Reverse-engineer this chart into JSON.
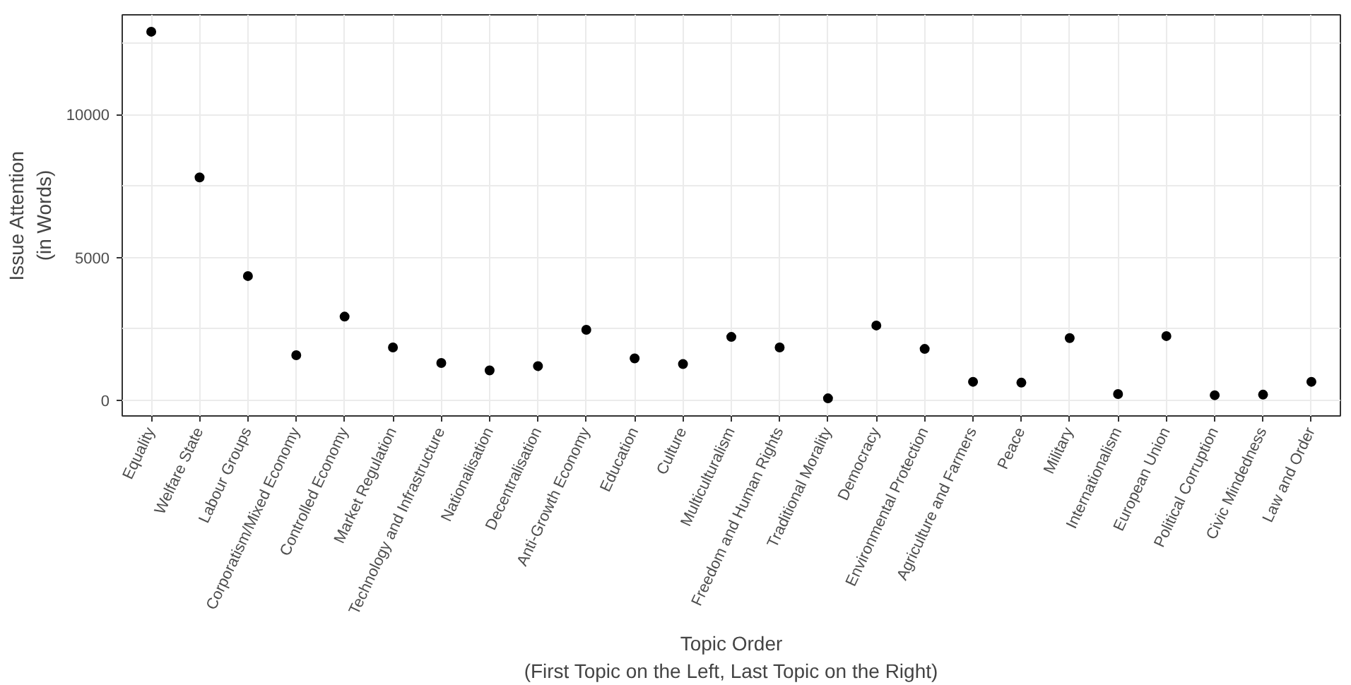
{
  "chart_data": {
    "type": "scatter",
    "xlabel": "Topic Order\n(First Topic on the Left, Last Topic on the Right)",
    "ylabel": "Issue Attention\n(in Words)",
    "categories": [
      "Equality",
      "Welfare State",
      "Labour Groups",
      "Corporatism/Mixed Economy",
      "Controlled Economy",
      "Market Regulation",
      "Technology and Infrastructure",
      "Nationalisation",
      "Decentralisation",
      "Anti-Growth Economy",
      "Education",
      "Culture",
      "Multiculturalism",
      "Freedom and Human Rights",
      "Traditional Morality",
      "Democracy",
      "Environmental Protection",
      "Agriculture and Farmers",
      "Peace",
      "Military",
      "Internationalism",
      "European Union",
      "Political Corruption",
      "Civic Mindedness",
      "Law and Order"
    ],
    "series": [
      {
        "color": "#000000",
        "values": [
          12900,
          7800,
          4350,
          1580,
          2930,
          1850,
          1310,
          1050,
          1200,
          2470,
          1470,
          1270,
          2220,
          1850,
          70,
          2620,
          1800,
          650,
          620,
          2180,
          220,
          2250,
          180,
          200,
          650
        ]
      }
    ],
    "ylim": [
      -545,
      13490
    ],
    "yticks": [
      0,
      5000,
      10000
    ],
    "grid": true,
    "marker": "circle"
  }
}
